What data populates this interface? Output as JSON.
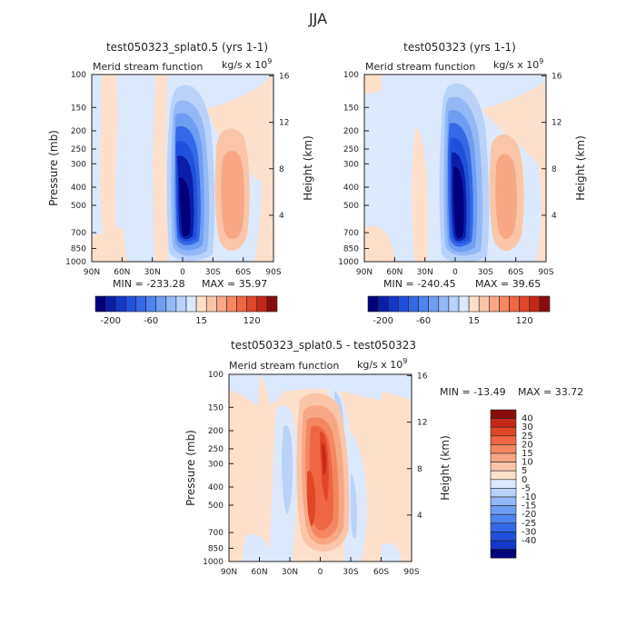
{
  "figure": {
    "season": "JJA"
  },
  "chart_data": [
    {
      "type": "heatmap",
      "title": "test050323_splat0.5 (yrs 1-1)",
      "subtitle_left": "Merid stream function",
      "units": "kg/s x 10",
      "units_exp": "9",
      "xlabel": "",
      "ylabel": "Pressure (mb)",
      "ylabel_right": "Height (km)",
      "x_ticks": [
        "90N",
        "60N",
        "30N",
        "0",
        "30S",
        "60S",
        "90S"
      ],
      "y_ticks": [
        "100",
        "150",
        "200",
        "250",
        "300",
        "400",
        "500",
        "700",
        "850",
        "1000"
      ],
      "y_right_ticks": [
        "16",
        "12",
        "8",
        "4"
      ],
      "ylim": [
        1000,
        100
      ],
      "xlim": [
        "90N",
        "90S"
      ],
      "min_text": "MIN = -233.28",
      "max_text": "MAX =  35.97",
      "min": -233.28,
      "max": 35.97,
      "colorbar_labels": [
        "-200",
        "-60",
        "15",
        "120"
      ],
      "features": [
        {
          "type": "negative-cell",
          "center_lat": 0,
          "center_p": 600,
          "peak": -233.28
        },
        {
          "type": "positive-cell",
          "center_lat": -40,
          "center_p": 500,
          "peak": 35.97
        }
      ]
    },
    {
      "type": "heatmap",
      "title": "test050323 (yrs 1-1)",
      "subtitle_left": "Merid stream function",
      "units": "kg/s x 10",
      "units_exp": "9",
      "xlabel": "",
      "ylabel": "",
      "ylabel_right": "Height (km)",
      "x_ticks": [
        "90N",
        "60N",
        "30N",
        "0",
        "30S",
        "60S",
        "90S"
      ],
      "y_ticks": [
        "100",
        "150",
        "200",
        "250",
        "300",
        "400",
        "500",
        "700",
        "850",
        "1000"
      ],
      "y_right_ticks": [
        "16",
        "12",
        "8",
        "4"
      ],
      "ylim": [
        1000,
        100
      ],
      "xlim": [
        "90N",
        "90S"
      ],
      "min_text": "MIN = -240.45",
      "max_text": "MAX =  39.65",
      "min": -240.45,
      "max": 39.65,
      "colorbar_labels": [
        "-200",
        "-60",
        "15",
        "120"
      ],
      "features": [
        {
          "type": "negative-cell",
          "center_lat": 5,
          "center_p": 600,
          "peak": -240.45
        },
        {
          "type": "positive-cell",
          "center_lat": -40,
          "center_p": 500,
          "peak": 39.65
        }
      ]
    },
    {
      "type": "heatmap",
      "title": "test050323_splat0.5 - test050323",
      "subtitle_left": "Merid stream function",
      "units": "kg/s x 10",
      "units_exp": "9",
      "xlabel": "",
      "ylabel": "Pressure (mb)",
      "ylabel_right": "Height (km)",
      "x_ticks": [
        "90N",
        "60N",
        "30N",
        "0",
        "30S",
        "60S",
        "90S"
      ],
      "y_ticks": [
        "100",
        "150",
        "200",
        "250",
        "300",
        "400",
        "500",
        "700",
        "850",
        "1000"
      ],
      "y_right_ticks": [
        "16",
        "12",
        "8",
        "4"
      ],
      "ylim": [
        1000,
        100
      ],
      "xlim": [
        "90N",
        "90S"
      ],
      "min_text": "MIN = -13.49",
      "max_text": "MAX =  33.72",
      "min": -13.49,
      "max": 33.72,
      "colorbar_labels": [
        "40",
        "30",
        "25",
        "20",
        "15",
        "10",
        "5",
        "0",
        "-5",
        "-10",
        "-15",
        "-20",
        "-25",
        "-30",
        "-40"
      ],
      "features": [
        {
          "type": "positive-cell",
          "center_lat": 10,
          "center_p": 400,
          "peak": 33.72
        },
        {
          "type": "negative-band",
          "center_lat": 35,
          "center_p": 450,
          "peak": -13.49
        }
      ]
    }
  ],
  "colormaps": {
    "main": [
      "#00007a",
      "#0a1ea8",
      "#1438c8",
      "#2050dc",
      "#3468e6",
      "#4f84ee",
      "#6e9ef2",
      "#92b8f6",
      "#b8d2fa",
      "#dce8fc",
      "#fde0cc",
      "#fbc5a8",
      "#f7a784",
      "#f48762",
      "#ef6644",
      "#e04628",
      "#c42818",
      "#8a0c0a"
    ],
    "diff": [
      "#8a0c0a",
      "#c42818",
      "#e04628",
      "#ef6644",
      "#f48762",
      "#f7a784",
      "#fbc5a8",
      "#fde0cc",
      "#dce8fc",
      "#b8d2fa",
      "#92b8f6",
      "#6e9ef2",
      "#4f84ee",
      "#3468e6",
      "#2050dc",
      "#1438c8",
      "#00007a"
    ]
  }
}
